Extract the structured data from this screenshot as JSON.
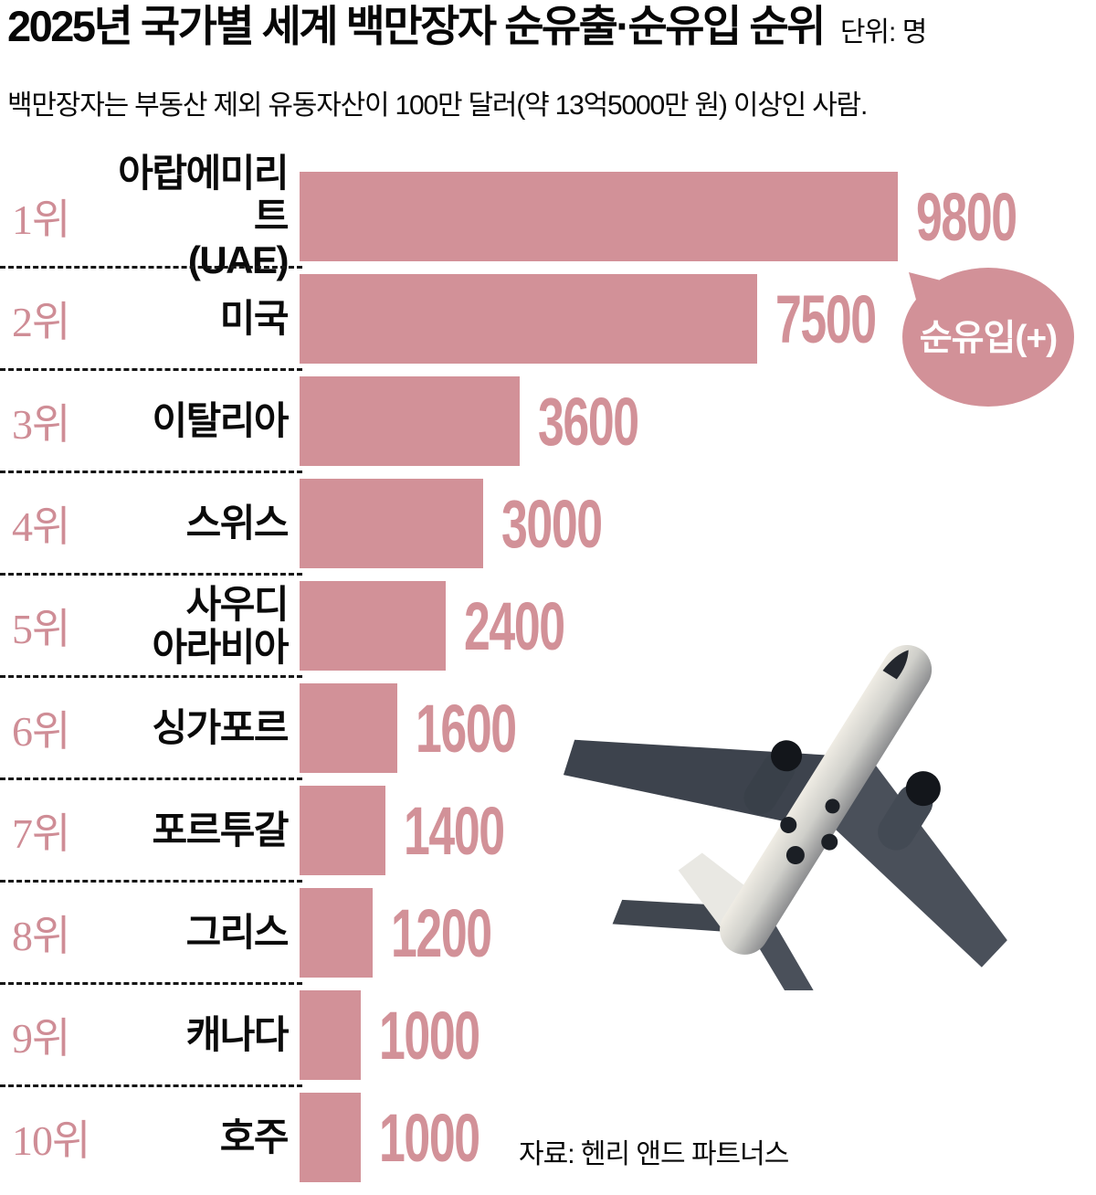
{
  "header": {
    "title": "2025년 국가별 세계 백만장자 순유출·순유입 순위",
    "unit_label": "단위: 명",
    "subtitle": "백만장자는 부동산 제외 유동자산이 100만 달러(약 13억5000만 원) 이상인 사람."
  },
  "chart_data": {
    "type": "bar",
    "orientation": "horizontal",
    "title": "2025년 국가별 세계 백만장자 순유출·순유입 순위",
    "unit": "명",
    "xlim": [
      0,
      9800
    ],
    "grid": false,
    "annotation_bubble": "순유입(+)",
    "source": "자료: 헨리 앤드 파트너스",
    "categories": [
      "아랍에미리트(UAE)",
      "미국",
      "이탈리아",
      "스위스",
      "사우디아라비아",
      "싱가포르",
      "포르투갈",
      "그리스",
      "캐나다",
      "호주"
    ],
    "values": [
      9800,
      7500,
      3600,
      3000,
      2400,
      1600,
      1400,
      1200,
      1000,
      1000
    ],
    "rows": [
      {
        "rank": "1위",
        "country": "아랍에미리트\n(UAE)",
        "value": 9800,
        "value_label": "9800"
      },
      {
        "rank": "2위",
        "country": "미국",
        "value": 7500,
        "value_label": "7500"
      },
      {
        "rank": "3위",
        "country": "이탈리아",
        "value": 3600,
        "value_label": "3600"
      },
      {
        "rank": "4위",
        "country": "스위스",
        "value": 3000,
        "value_label": "3000"
      },
      {
        "rank": "5위",
        "country": "사우디\n아라비아",
        "value": 2400,
        "value_label": "2400"
      },
      {
        "rank": "6위",
        "country": "싱가포르",
        "value": 1600,
        "value_label": "1600"
      },
      {
        "rank": "7위",
        "country": "포르투갈",
        "value": 1400,
        "value_label": "1400"
      },
      {
        "rank": "8위",
        "country": "그리스",
        "value": 1200,
        "value_label": "1200"
      },
      {
        "rank": "9위",
        "country": "캐나다",
        "value": 1000,
        "value_label": "1000"
      },
      {
        "rank": "10위",
        "country": "호주",
        "value": 1000,
        "value_label": "1000"
      }
    ]
  },
  "colors": {
    "accent_pink": "#d29198",
    "rank_pink": "#cf8d96",
    "text_black": "#070707",
    "bubble_text": "#ffffff"
  },
  "icons": {
    "airplane": "airplane-photo-decoration"
  }
}
